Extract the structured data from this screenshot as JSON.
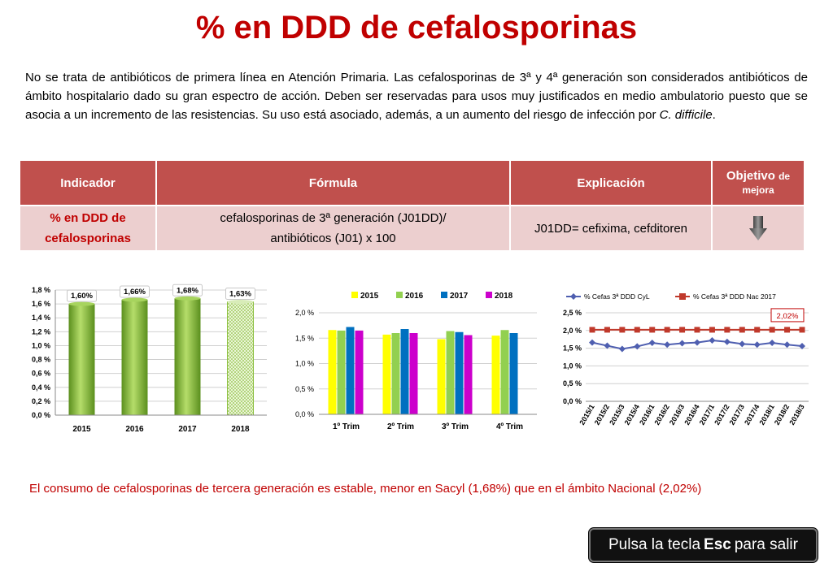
{
  "title": "% en DDD de cefalosporinas",
  "intro": {
    "text": "No se trata de antibióticos de primera línea en Atención Primaria. Las cefalosporinas de 3ª y 4ª generación son considerados antibióticos de ámbito hospitalario dado su gran espectro de acción. Deben ser reservadas para usos muy justificados en medio ambulatorio puesto que se asocia a un incremento de las resistencias. Su uso está asociado, además, a un aumento del riesgo de infección por ",
    "italic": "C. difficile",
    "end": "."
  },
  "table": {
    "headers": {
      "indicador": "Indicador",
      "formula": "Fórmula",
      "explicacion": "Explicación",
      "objetivo": "Objetivo",
      "objetivo_small1": "de",
      "objetivo_small2": "mejora"
    },
    "row": {
      "indicador_line1": "% en DDD de",
      "indicador_line2": "cefalosporinas",
      "formula_line1": "cefalosporinas de 3ª generación (J01DD)/",
      "formula_line2": "antibióticos (J01) x 100",
      "explicacion": "J01DD= cefixima, cefditoren",
      "objetivo_icon": "down-arrow-icon"
    }
  },
  "colors": {
    "red": "#c00000",
    "header": "#c0504d",
    "green": "#8cbf3f",
    "c2015": "#ffff00",
    "c2016": "#92d050",
    "c2017": "#0070c0",
    "c2018": "#cc00cc",
    "cyl": "#4f5fb0",
    "nac": "#c0392b"
  },
  "chart_data": [
    {
      "type": "bar",
      "categories": [
        "2015",
        "2016",
        "2017",
        "2018"
      ],
      "values": [
        1.6,
        1.66,
        1.68,
        1.63
      ],
      "data_labels": [
        "1,60%",
        "1,66%",
        "1,68%",
        "1,63%"
      ],
      "yticks": [
        "0,0 %",
        "0,2 %",
        "0,4 %",
        "0,6 %",
        "0,8 %",
        "1,0 %",
        "1,2 %",
        "1,4 %",
        "1,6 %",
        "1,8 %"
      ],
      "ylim": [
        0,
        1.8
      ],
      "grid": true,
      "note": "2018 bar patterned"
    },
    {
      "type": "bar",
      "categories": [
        "1º Trim",
        "2º Trim",
        "3º Trim",
        "4º Trim"
      ],
      "series": [
        {
          "name": "2015",
          "values": [
            1.66,
            1.57,
            1.48,
            1.55
          ]
        },
        {
          "name": "2016",
          "values": [
            1.65,
            1.6,
            1.64,
            1.66
          ]
        },
        {
          "name": "2017",
          "values": [
            1.72,
            1.68,
            1.62,
            1.6
          ]
        },
        {
          "name": "2018",
          "values": [
            1.65,
            1.6,
            1.56,
            null
          ]
        }
      ],
      "yticks": [
        "0,0 %",
        "0,5 %",
        "1,0 %",
        "1,5 %",
        "2,0 %"
      ],
      "ylim": [
        0,
        2.0
      ],
      "legend": "top",
      "grid": true
    },
    {
      "type": "line",
      "x": [
        "2015/1",
        "2015/2",
        "2015/3",
        "2015/4",
        "2016/1",
        "2016/2",
        "2016/3",
        "2016/4",
        "2017/1",
        "2017/2",
        "2017/3",
        "2017/4",
        "2018/1",
        "2018/2",
        "2018/3"
      ],
      "series": [
        {
          "name": "% Cefas 3ª DDD CyL",
          "values": [
            1.66,
            1.57,
            1.48,
            1.55,
            1.65,
            1.6,
            1.64,
            1.66,
            1.72,
            1.68,
            1.62,
            1.6,
            1.65,
            1.6,
            1.56
          ]
        },
        {
          "name": "% Cefas 3ª DDD  Nac 2017",
          "values": [
            2.02,
            2.02,
            2.02,
            2.02,
            2.02,
            2.02,
            2.02,
            2.02,
            2.02,
            2.02,
            2.02,
            2.02,
            2.02,
            2.02,
            2.02
          ]
        }
      ],
      "yticks": [
        "0,0 %",
        "0,5 %",
        "1,0 %",
        "1,5 %",
        "2,0 %",
        "2,5 %"
      ],
      "ylim": [
        0,
        2.5
      ],
      "annotation": "2,02%",
      "legend": "top",
      "grid": true
    }
  ],
  "conclusion": "El consumo de cefalosporinas de tercera generación es estable, menor en Sacyl (1,68%) que en el ámbito Nacional (2,02%)",
  "esc_button": {
    "pre": "Pulsa la tecla",
    "key": "Esc",
    "post": "para salir"
  }
}
